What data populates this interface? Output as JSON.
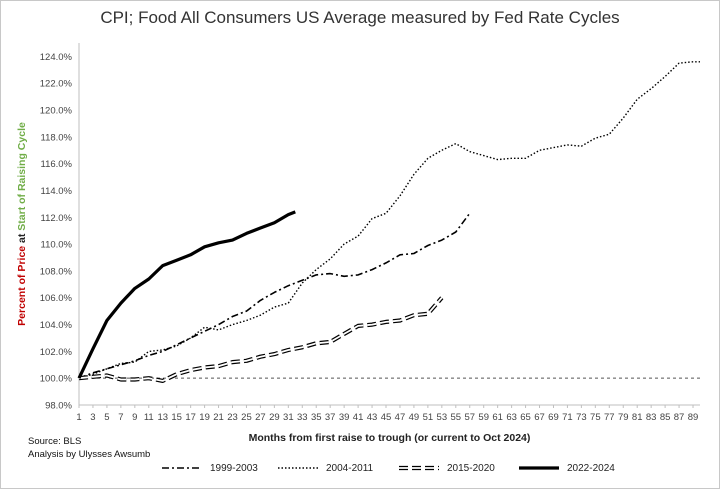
{
  "chart_data": {
    "type": "line",
    "title": "CPI; Food All Consumers US Average measured by Fed Rate Cycles",
    "xlabel": "Months from first raise to trough (or current to Oct 2024)",
    "ylabel_parts": [
      "Percent of Price",
      " at ",
      "Start of Raising Cycle"
    ],
    "ylabel_colors": [
      "#c00000",
      "#222222",
      "#70ad47"
    ],
    "xlim": [
      1,
      90
    ],
    "ylim": [
      98,
      125
    ],
    "y_ticks": [
      98,
      100,
      102,
      104,
      106,
      108,
      110,
      112,
      114,
      116,
      118,
      120,
      122,
      124
    ],
    "y_tick_labels": [
      "98.0%",
      "100.0%",
      "102.0%",
      "104.0%",
      "106.0%",
      "108.0%",
      "110.0%",
      "112.0%",
      "114.0%",
      "116.0%",
      "118.0%",
      "120.0%",
      "122.0%",
      "124.0%"
    ],
    "x_ticks": [
      1,
      3,
      5,
      7,
      9,
      11,
      13,
      15,
      17,
      19,
      21,
      23,
      25,
      27,
      29,
      31,
      33,
      35,
      37,
      39,
      41,
      43,
      45,
      47,
      49,
      51,
      53,
      55,
      57,
      59,
      61,
      63,
      65,
      67,
      69,
      71,
      73,
      75,
      77,
      79,
      81,
      83,
      85,
      87,
      89
    ],
    "reference_line": 100,
    "grid": false,
    "legend_position": "bottom",
    "series": [
      {
        "name": "1999-2003",
        "style": "dashdot",
        "color": "#000000",
        "x": [
          1,
          3,
          5,
          7,
          9,
          11,
          13,
          15,
          17,
          19,
          21,
          23,
          25,
          27,
          29,
          31,
          33,
          35,
          37,
          39,
          41,
          43,
          45,
          47,
          49,
          51,
          53,
          55,
          57
        ],
        "values": [
          100,
          100.4,
          100.7,
          101.0,
          101.3,
          101.7,
          102.0,
          102.5,
          103.0,
          103.5,
          104.0,
          104.6,
          105.0,
          105.8,
          106.4,
          106.9,
          107.3,
          107.7,
          107.8,
          107.6,
          107.7,
          108.1,
          108.6,
          109.2,
          109.3,
          109.9,
          110.3,
          110.9,
          112.3
        ]
      },
      {
        "name": "2004-2011",
        "style": "dotted",
        "color": "#000000",
        "x": [
          1,
          3,
          5,
          7,
          9,
          11,
          13,
          15,
          17,
          19,
          21,
          23,
          25,
          27,
          29,
          31,
          33,
          35,
          37,
          39,
          41,
          43,
          45,
          47,
          49,
          51,
          53,
          55,
          57,
          59,
          61,
          63,
          65,
          67,
          69,
          71,
          73,
          75,
          77,
          79,
          81,
          83,
          85,
          87,
          89,
          90
        ],
        "values": [
          100,
          100.3,
          100.7,
          101.1,
          101.2,
          102.0,
          102.1,
          102.4,
          103.0,
          103.8,
          103.6,
          104.0,
          104.3,
          104.7,
          105.3,
          105.6,
          107.1,
          108.1,
          108.9,
          110.0,
          110.6,
          111.9,
          112.3,
          113.6,
          115.2,
          116.4,
          117.0,
          117.5,
          116.9,
          116.6,
          116.3,
          116.4,
          116.4,
          117.0,
          117.2,
          117.4,
          117.3,
          117.9,
          118.2,
          119.4,
          120.8,
          121.6,
          122.5,
          123.5,
          123.6,
          123.6
        ]
      },
      {
        "name": "2015-2020",
        "style": "hollow-dash",
        "color": "#000000",
        "x": [
          1,
          3,
          5,
          7,
          9,
          11,
          13,
          15,
          17,
          19,
          21,
          23,
          25,
          27,
          29,
          31,
          33,
          35,
          37,
          39,
          41,
          43,
          45,
          47,
          49,
          51,
          53
        ],
        "values": [
          100,
          100.1,
          100.2,
          99.9,
          99.9,
          100.0,
          99.8,
          100.3,
          100.6,
          100.8,
          100.9,
          101.2,
          101.3,
          101.6,
          101.8,
          102.1,
          102.3,
          102.6,
          102.7,
          103.3,
          103.9,
          104.0,
          104.2,
          104.3,
          104.7,
          104.8,
          106.0
        ]
      },
      {
        "name": "2022-2024",
        "style": "solid-thick",
        "color": "#000000",
        "x": [
          1,
          3,
          5,
          7,
          9,
          11,
          13,
          15,
          17,
          19,
          21,
          23,
          25,
          27,
          29,
          31,
          32
        ],
        "values": [
          100,
          102.2,
          104.3,
          105.6,
          106.7,
          107.4,
          108.4,
          108.8,
          109.2,
          109.8,
          110.1,
          110.3,
          110.8,
          111.2,
          111.6,
          112.2,
          112.4
        ]
      }
    ]
  },
  "notes": {
    "source": "Source: BLS",
    "analysis": "Analysis by Ulysses Awsumb"
  }
}
